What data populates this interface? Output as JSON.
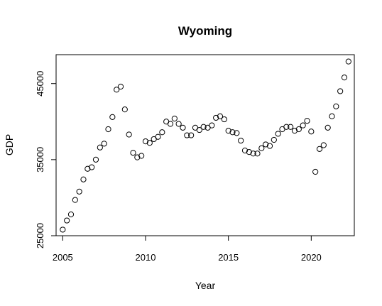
{
  "chart_data": {
    "type": "scatter",
    "title": "Wyoming",
    "xlabel": "Year",
    "ylabel": "GDP",
    "xlim": [
      2004.6,
      2022.6
    ],
    "ylim": [
      25000,
      48800
    ],
    "xticks": [
      2005,
      2010,
      2015,
      2020
    ],
    "yticks": [
      25000,
      35000,
      45000
    ],
    "xtick_labels": [
      "2005",
      "2010",
      "2015",
      "2020"
    ],
    "ytick_labels": [
      "25000",
      "35000",
      "45000"
    ],
    "grid": false,
    "legend": "none",
    "marker": "open-circle",
    "points": [
      [
        2005.0,
        25800
      ],
      [
        2005.25,
        27000
      ],
      [
        2005.5,
        27800
      ],
      [
        2005.75,
        29700
      ],
      [
        2006.0,
        30800
      ],
      [
        2006.25,
        32400
      ],
      [
        2006.5,
        33800
      ],
      [
        2006.75,
        34000
      ],
      [
        2007.0,
        35000
      ],
      [
        2007.25,
        36600
      ],
      [
        2007.5,
        37100
      ],
      [
        2007.75,
        39000
      ],
      [
        2008.0,
        40600
      ],
      [
        2008.25,
        44200
      ],
      [
        2008.5,
        44600
      ],
      [
        2008.75,
        41600
      ],
      [
        2009.0,
        38300
      ],
      [
        2009.25,
        35900
      ],
      [
        2009.5,
        35300
      ],
      [
        2009.75,
        35500
      ],
      [
        2010.0,
        37400
      ],
      [
        2010.25,
        37200
      ],
      [
        2010.5,
        37700
      ],
      [
        2010.75,
        38000
      ],
      [
        2011.0,
        38600
      ],
      [
        2011.25,
        40000
      ],
      [
        2011.5,
        39700
      ],
      [
        2011.75,
        40400
      ],
      [
        2012.0,
        39700
      ],
      [
        2012.25,
        39200
      ],
      [
        2012.5,
        38200
      ],
      [
        2012.75,
        38200
      ],
      [
        2013.0,
        39200
      ],
      [
        2013.25,
        38900
      ],
      [
        2013.5,
        39300
      ],
      [
        2013.75,
        39200
      ],
      [
        2014.0,
        39500
      ],
      [
        2014.25,
        40500
      ],
      [
        2014.5,
        40700
      ],
      [
        2014.75,
        40300
      ],
      [
        2015.0,
        38800
      ],
      [
        2015.25,
        38600
      ],
      [
        2015.5,
        38500
      ],
      [
        2015.75,
        37500
      ],
      [
        2016.0,
        36200
      ],
      [
        2016.25,
        36000
      ],
      [
        2016.5,
        35800
      ],
      [
        2016.75,
        35800
      ],
      [
        2017.0,
        36500
      ],
      [
        2017.25,
        37000
      ],
      [
        2017.5,
        36800
      ],
      [
        2017.75,
        37600
      ],
      [
        2018.0,
        38400
      ],
      [
        2018.25,
        39000
      ],
      [
        2018.5,
        39300
      ],
      [
        2018.75,
        39300
      ],
      [
        2019.0,
        38800
      ],
      [
        2019.25,
        39000
      ],
      [
        2019.5,
        39500
      ],
      [
        2019.75,
        40100
      ],
      [
        2020.0,
        38700
      ],
      [
        2020.25,
        33400
      ],
      [
        2020.5,
        36400
      ],
      [
        2020.75,
        36900
      ],
      [
        2021.0,
        39200
      ],
      [
        2021.25,
        40700
      ],
      [
        2021.5,
        42000
      ],
      [
        2021.75,
        44000
      ],
      [
        2022.0,
        45800
      ],
      [
        2022.25,
        47900
      ]
    ]
  }
}
